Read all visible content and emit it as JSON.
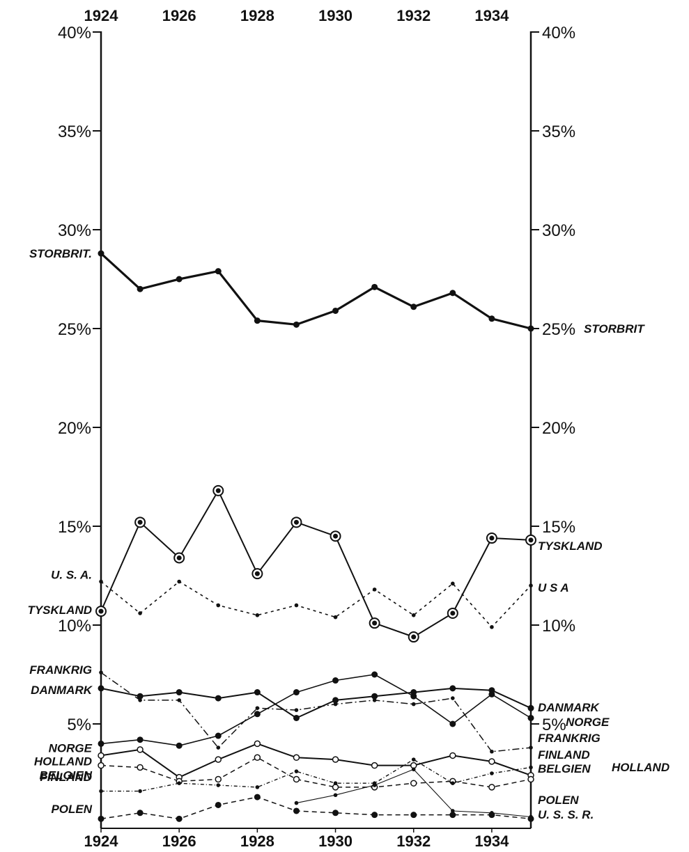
{
  "chart_data": {
    "type": "line",
    "title": "",
    "xlabel": "",
    "ylabel": "",
    "x": [
      1924,
      1925,
      1926,
      1927,
      1928,
      1929,
      1930,
      1931,
      1932,
      1933,
      1934,
      1935
    ],
    "x_tick_labels": [
      "1924",
      "1926",
      "1928",
      "1930",
      "1932",
      "1934"
    ],
    "y_tick_labels_left": [
      "40%",
      "35%",
      "30%",
      "25%",
      "20%",
      "15%",
      "10%",
      "5%"
    ],
    "y_tick_labels_right": [
      "40%",
      "35%",
      "30%",
      "25%",
      "20%",
      "15%",
      "10%",
      "5%"
    ],
    "ylim": [
      0.5,
      40
    ],
    "grid": false,
    "legend": "none",
    "series": [
      {
        "name": "STORBRIT.",
        "name_right": "STORBRIT",
        "values": [
          28.8,
          27.0,
          27.5,
          27.9,
          25.4,
          25.2,
          25.9,
          27.1,
          26.1,
          26.8,
          25.5,
          25.0
        ],
        "style": "heavy",
        "marker": "dot"
      },
      {
        "name": "TYSKLAND",
        "name_right": "TYSKLAND",
        "values": [
          10.7,
          15.2,
          13.4,
          16.8,
          12.6,
          15.2,
          14.5,
          10.1,
          9.4,
          10.6,
          14.4,
          14.3
        ],
        "style": "solid",
        "marker": "ring"
      },
      {
        "name": "U. S. A.",
        "name_right": "U  S  A",
        "values": [
          12.2,
          10.6,
          12.2,
          11.0,
          10.5,
          11.0,
          10.4,
          11.8,
          10.5,
          12.1,
          9.9,
          12.0
        ],
        "style": "dotted",
        "marker": "small"
      },
      {
        "name": "FRANKRIG",
        "name_right": "FRANKRIG",
        "values": [
          7.6,
          6.2,
          6.2,
          3.8,
          5.8,
          5.7,
          6.0,
          6.2,
          6.0,
          6.3,
          3.6,
          3.8
        ],
        "style": "dashdot",
        "marker": "small"
      },
      {
        "name": "DANMARK",
        "name_right": "DANMARK",
        "values": [
          6.8,
          6.4,
          6.6,
          6.3,
          6.6,
          5.3,
          6.2,
          6.4,
          6.6,
          6.8,
          6.7,
          5.8
        ],
        "style": "solid",
        "marker": "dot"
      },
      {
        "name": "NORGE",
        "name_right": "NORGE",
        "values": [
          4.0,
          4.2,
          3.9,
          4.4,
          5.5,
          6.6,
          7.2,
          7.5,
          6.4,
          5.0,
          6.5,
          5.3
        ],
        "style": "dashed-solid",
        "marker": "dot"
      },
      {
        "name": "HOLLAND",
        "name_right": "HOLLAND",
        "values": [
          3.4,
          3.7,
          2.3,
          3.2,
          4.0,
          3.3,
          3.2,
          2.9,
          2.9,
          3.4,
          3.1,
          2.4
        ],
        "style": "solid",
        "marker": "ring-small"
      },
      {
        "name": "BELGIEN",
        "name_right": "BELGIEN",
        "values": [
          2.9,
          2.8,
          2.1,
          2.2,
          3.3,
          2.2,
          1.8,
          1.8,
          2.0,
          2.1,
          1.8,
          2.2
        ],
        "style": "dashed",
        "marker": "ring-small"
      },
      {
        "name": "FINLAND",
        "name_right": "FINLAND",
        "values": [
          1.6,
          1.6,
          2.0,
          1.9,
          1.8,
          2.6,
          2.0,
          2.0,
          3.2,
          2.0,
          2.5,
          2.8
        ],
        "style": "dashdot-fine",
        "marker": "small"
      },
      {
        "name": "POLEN",
        "name_right": "POLEN",
        "values": [
          null,
          null,
          null,
          null,
          null,
          1.0,
          1.4,
          1.9,
          2.7,
          0.6,
          0.5,
          0.3
        ],
        "style": "thin-solid",
        "marker": "small"
      },
      {
        "name": "",
        "name_right": "U. S. S. R.",
        "values": [
          0.2,
          0.5,
          0.2,
          0.9,
          1.3,
          0.6,
          0.5,
          0.4,
          0.4,
          0.4,
          0.4,
          0.2
        ],
        "style": "dashed",
        "marker": "dot"
      }
    ]
  }
}
